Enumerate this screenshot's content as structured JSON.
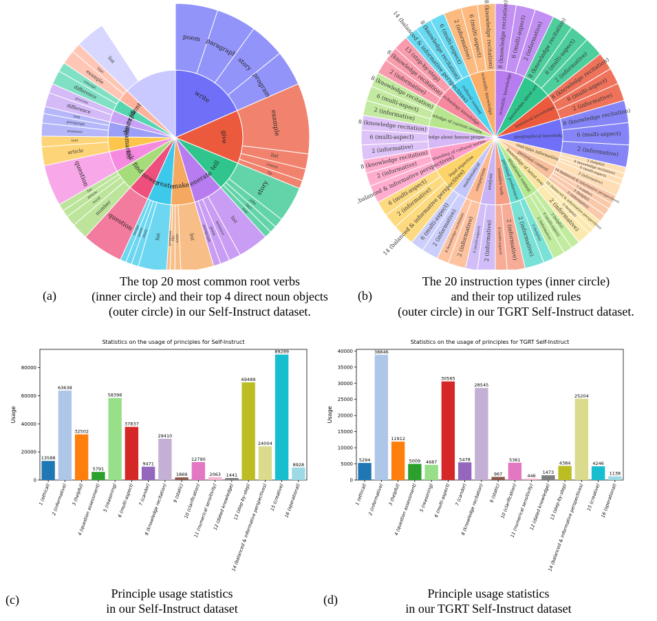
{
  "colors": {
    "write": "#6f70f7",
    "give": "#ec5a3e",
    "tell": "#2fc58c",
    "generate": "#b77cf0",
    "make": "#f5a85f",
    "create": "#3cc9ec",
    "answer": "#ef4f7c",
    "find": "#a6dc7a",
    "ask": "#f68ae0",
    "summarize": "#fdc54b",
    "edit": "#9c9ff8",
    "explain": "#56d6b0",
    "describe": "#c7a3f6",
    "identify": "#ffb39d",
    "other": "#c9c9ff"
  },
  "panel_a": {
    "tag": "(a)",
    "caption_lines": [
      "The top 20 most common root verbs",
      "(inner circle) and their top 4 direct noun objects",
      "(outer circle) in our Self-Instruct dataset."
    ],
    "inner": [
      {
        "label": "write",
        "value": 13,
        "color_key": "write"
      },
      {
        "label": "give",
        "value": 9,
        "color_key": "give"
      },
      {
        "label": "tell",
        "value": 5,
        "color_key": "tell"
      },
      {
        "label": "generate",
        "value": 5,
        "color_key": "generate"
      },
      {
        "label": "make",
        "value": 4,
        "color_key": "make"
      },
      {
        "label": "create",
        "value": 4,
        "color_key": "create"
      },
      {
        "label": "answer",
        "value": 3.5,
        "color_key": "answer"
      },
      {
        "label": "find",
        "value": 3.5,
        "color_key": "find"
      },
      {
        "label": "ask",
        "value": 3.5,
        "color_key": "ask"
      },
      {
        "label": "summarize",
        "value": 2.5,
        "color_key": "summarize"
      },
      {
        "label": "edit",
        "value": 2.5,
        "color_key": "edit"
      },
      {
        "label": "describe",
        "value": 2,
        "color_key": "describe"
      },
      {
        "label": "explain",
        "value": 2,
        "color_key": "explain"
      },
      {
        "label": "identify",
        "value": 2,
        "color_key": "identify"
      },
      {
        "label": "",
        "value": 9,
        "color_key": "other"
      }
    ],
    "outer": [
      {
        "label": "poem",
        "value": 3.6,
        "parent": 0
      },
      {
        "label": "paragraph",
        "value": 3.4,
        "parent": 0
      },
      {
        "label": "story",
        "value": 3,
        "parent": 0
      },
      {
        "label": "program",
        "value": 3,
        "parent": 0
      },
      {
        "label": "example",
        "value": 6,
        "parent": 1
      },
      {
        "label": "list",
        "value": 1.3,
        "parent": 1
      },
      {
        "label": "reason",
        "value": 1,
        "parent": 1
      },
      {
        "label": "tip",
        "value": 0.7,
        "parent": 1
      },
      {
        "label": "story",
        "value": 3,
        "parent": 2
      },
      {
        "label": "joke",
        "value": 0.8,
        "parent": 2
      },
      {
        "label": "fact",
        "value": 0.6,
        "parent": 2
      },
      {
        "label": "way",
        "value": 0.6,
        "parent": 2
      },
      {
        "label": "list",
        "value": 2.6,
        "parent": 3
      },
      {
        "label": "sentence",
        "value": 1,
        "parent": 3
      },
      {
        "label": "poem",
        "value": 0.8,
        "parent": 3
      },
      {
        "label": "paragraph",
        "value": 0.6,
        "parent": 3
      },
      {
        "label": "list",
        "value": 2.8,
        "parent": 4
      },
      {
        "label": "story",
        "value": 0.5,
        "parent": 4
      },
      {
        "label": "list",
        "value": 0.4,
        "parent": 4
      },
      {
        "label": "program",
        "value": 0.3,
        "parent": 4
      },
      {
        "label": "list",
        "value": 2.4,
        "parent": 5
      },
      {
        "label": "story",
        "value": 0.6,
        "parent": 5
      },
      {
        "label": "poem",
        "value": 0.5,
        "parent": 5
      },
      {
        "label": "recipe",
        "value": 0.5,
        "parent": 5
      },
      {
        "label": "question",
        "value": 3.5,
        "parent": 6
      },
      {
        "label": "number",
        "value": 1.4,
        "parent": 7
      },
      {
        "label": "word",
        "value": 0.9,
        "parent": 7
      },
      {
        "label": "article",
        "value": 0.6,
        "parent": 7
      },
      {
        "label": "list",
        "value": 0.6,
        "parent": 7
      },
      {
        "label": "question",
        "value": 3.5,
        "parent": 8
      },
      {
        "label": "article",
        "value": 1.6,
        "parent": 9
      },
      {
        "label": "text",
        "value": 0.9,
        "parent": 9
      },
      {
        "label": "sentence",
        "value": 1.1,
        "parent": 10
      },
      {
        "label": "paragraph",
        "value": 0.8,
        "parent": 10
      },
      {
        "label": "text",
        "value": 0.6,
        "parent": 10
      },
      {
        "label": "difference",
        "value": 1.2,
        "parent": 11
      },
      {
        "label": "process",
        "value": 0.8,
        "parent": 11
      },
      {
        "label": "difference",
        "value": 1.2,
        "parent": 12
      },
      {
        "label": "concept",
        "value": 0.8,
        "parent": 12
      },
      {
        "label": "example",
        "value": 1.2,
        "parent": 13
      },
      {
        "label": "type",
        "value": 0.8,
        "parent": 13
      },
      {
        "label": "list",
        "value": 2.5,
        "parent": 14
      },
      {
        "label": "",
        "value": 6.5,
        "parent": 14
      }
    ]
  },
  "panel_b": {
    "tag": "(b)",
    "caption_lines": [
      "The 20 instruction types (inner circle)",
      "and their top utilized rules",
      "(outer circle) in our TGRT Self-Instruct dataset."
    ],
    "inner": [
      {
        "label": "scientific knowledge",
        "value": 4,
        "color": "#b77cf0"
      },
      {
        "label": "knowledge about art",
        "value": 4,
        "color": "#2fc58c"
      },
      {
        "label": "historical knowledge",
        "value": 3.5,
        "color": "#ec5a3e"
      },
      {
        "label": "geographical knowledge",
        "value": 4.5,
        "color": "#6f70f7"
      },
      {
        "label": "real-time information",
        "value": 2,
        "color": "#fdd8a8"
      },
      {
        "label": "personal context",
        "value": 2,
        "color": "#f8c09a"
      },
      {
        "label": "knowledge of latest events",
        "value": 2,
        "color": "#fbe5a0"
      },
      {
        "label": "situational context",
        "value": 2,
        "color": "#b6e88e"
      },
      {
        "label": "personal preference",
        "value": 2,
        "color": "#62dcd0"
      },
      {
        "label": "creative task",
        "value": 2,
        "color": "#f59d85"
      },
      {
        "label": "analysis",
        "value": 2,
        "color": "#c9b3f7"
      },
      {
        "label": "comparison",
        "value": 2,
        "color": "#fdb88f"
      },
      {
        "label": "mathematical",
        "value": 2,
        "color": "#c3c6fa"
      },
      {
        "label": "legal expertise",
        "value": 3.5,
        "color": "#fdd469"
      },
      {
        "label": "understanding of cultural norms",
        "value": 3,
        "color": "#ff9ec7"
      },
      {
        "label": "knowledge about famous people",
        "value": 3,
        "color": "#d7b8f6"
      },
      {
        "label": "knowledge of current events",
        "value": 3,
        "color": "#b8e68f"
      },
      {
        "label": "technology knowledge",
        "value": 3,
        "color": "#f7899e"
      },
      {
        "label": "cultural context",
        "value": 3,
        "color": "#4fd4ef"
      },
      {
        "label": "scientific knowledge",
        "value": 3.5,
        "color": "#fbae6a"
      }
    ],
    "outer": [
      {
        "label": "8 (knowledge recitation)",
        "value": 1.4,
        "parent": 0
      },
      {
        "label": "6 (multi-aspect)",
        "value": 1.3,
        "parent": 0
      },
      {
        "label": "2 (informative)",
        "value": 1.3,
        "parent": 0
      },
      {
        "label": "8 (knowledge recitation)",
        "value": 1.4,
        "parent": 1
      },
      {
        "label": "6 (multi-aspect)",
        "value": 1.3,
        "parent": 1
      },
      {
        "label": "2 (informative)",
        "value": 1.3,
        "parent": 1
      },
      {
        "label": "8 (knowledge recitation)",
        "value": 1.2,
        "parent": 2
      },
      {
        "label": "6 (multi-aspect)",
        "value": 1.1,
        "parent": 2
      },
      {
        "label": "2 (informative)",
        "value": 1.2,
        "parent": 2
      },
      {
        "label": "8 (knowledge recitation)",
        "value": 1.5,
        "parent": 3
      },
      {
        "label": "6 (multi-aspect)",
        "value": 1.5,
        "parent": 3
      },
      {
        "label": "2 (informative)",
        "value": 1.5,
        "parent": 3
      },
      {
        "label": "3 (helpful)",
        "value": 0.4,
        "parent": 4
      },
      {
        "label": "8 (knowledge recitation)",
        "value": 0.4,
        "parent": 4
      },
      {
        "label": "6 (multi-aspect)",
        "value": 0.4,
        "parent": 4
      },
      {
        "label": "2 (informative)",
        "value": 0.8,
        "parent": 4
      },
      {
        "label": "14 (balanced & informative perspectives)",
        "value": 0.6,
        "parent": 5
      },
      {
        "label": "7 (candor)",
        "value": 0.4,
        "parent": 5
      },
      {
        "label": "3 (helpful)",
        "value": 0.5,
        "parent": 5
      },
      {
        "label": "2 (informative)",
        "value": 0.5,
        "parent": 5
      },
      {
        "label": "14 (balanced & informative perspectives)",
        "value": 0.7,
        "parent": 6
      },
      {
        "label": "3 (helpful)",
        "value": 0.4,
        "parent": 6
      },
      {
        "label": "2 (informative)",
        "value": 0.9,
        "parent": 6
      },
      {
        "label": "3 (helpful)",
        "value": 0.6,
        "parent": 7
      },
      {
        "label": "6 (multi-aspect)",
        "value": 0.6,
        "parent": 7
      },
      {
        "label": "2 (informative)",
        "value": 0.8,
        "parent": 7
      },
      {
        "label": "3 (helpful)",
        "value": 0.7,
        "parent": 8
      },
      {
        "label": "2 (informative)",
        "value": 1.3,
        "parent": 8
      },
      {
        "label": "2 (informative)",
        "value": 1.2,
        "parent": 9
      },
      {
        "label": "6 (multi-aspect)",
        "value": 0.8,
        "parent": 9
      },
      {
        "label": "2 (informative)",
        "value": 1.2,
        "parent": 10
      },
      {
        "label": "6 (multi-aspect)",
        "value": 0.8,
        "parent": 10
      },
      {
        "label": "2 (informative)",
        "value": 1.2,
        "parent": 11
      },
      {
        "label": "8 (knowledge recitation)",
        "value": 0.8,
        "parent": 11
      },
      {
        "label": "2 (informative)",
        "value": 1.1,
        "parent": 12
      },
      {
        "label": "6 (multi-aspect)",
        "value": 0.9,
        "parent": 12
      },
      {
        "label": "14 (balanced & informative perspectives)",
        "value": 1.5,
        "parent": 13
      },
      {
        "label": "2 (informative)",
        "value": 1,
        "parent": 13
      },
      {
        "label": "6 (multi-aspect)",
        "value": 1,
        "parent": 13
      },
      {
        "label": "14 (balanced & informative perspectives)",
        "value": 1.2,
        "parent": 14
      },
      {
        "label": "2 (informative)",
        "value": 0.9,
        "parent": 14
      },
      {
        "label": "8 (knowledge recitation)",
        "value": 0.9,
        "parent": 14
      },
      {
        "label": "2 (informative)",
        "value": 1,
        "parent": 15
      },
      {
        "label": "6 (multi-aspect)",
        "value": 1,
        "parent": 15
      },
      {
        "label": "8 (knowledge recitation)",
        "value": 1,
        "parent": 15
      },
      {
        "label": "2 (informative)",
        "value": 1,
        "parent": 16
      },
      {
        "label": "6 (multi-aspect)",
        "value": 1,
        "parent": 16
      },
      {
        "label": "8 (knowledge recitation)",
        "value": 1,
        "parent": 16
      },
      {
        "label": "2 (informative)",
        "value": 1,
        "parent": 17
      },
      {
        "label": "8 (knowledge recitation)",
        "value": 1,
        "parent": 17
      },
      {
        "label": "13 (step-by-step)",
        "value": 1,
        "parent": 17
      },
      {
        "label": "14 (balanced & informative perspectives)",
        "value": 0.9,
        "parent": 18
      },
      {
        "label": "8 (knowledge recitation)",
        "value": 1.1,
        "parent": 18
      },
      {
        "label": "6 (multi-aspect)",
        "value": 1,
        "parent": 18
      },
      {
        "label": "2 (informative)",
        "value": 1.2,
        "parent": 19
      },
      {
        "label": "6 (multi-aspect)",
        "value": 1.1,
        "parent": 19
      },
      {
        "label": "8 (knowledge recitation)",
        "value": 1.2,
        "parent": 19
      }
    ]
  },
  "panel_c": {
    "tag": "(c)",
    "caption_lines": [
      "Principle usage statistics",
      "in our Self-Instruct dataset"
    ]
  },
  "panel_d": {
    "tag": "(d)",
    "caption_lines": [
      "Principle usage statistics",
      "in our TGRT Self-Instruct dataset"
    ]
  },
  "chart_data": [
    {
      "type": "bar",
      "title": "Statistics on the usage of principles for Self-Instruct",
      "xlabel": "",
      "ylabel": "Usage",
      "ylim": [
        0,
        93000
      ],
      "yticks": [
        0,
        20000,
        40000,
        60000,
        80000
      ],
      "categories": [
        "1 (ethical)",
        "2 (informative)",
        "3 (helpful)",
        "4 (question assessment)",
        "5 (reasoning)",
        "6 (multi-aspect)",
        "7 (candor)",
        "8 (knowledge recitation)",
        "9 (static)",
        "10 (clarification)",
        "11 (numerical sensitivity)",
        "12 (dated knowledge)",
        "13 (step-by-step)",
        "14 (balanced & informative perspectives)",
        "15 (creative)",
        "16 (operational)"
      ],
      "values": [
        13588,
        63638,
        32502,
        5791,
        58396,
        37837,
        9471,
        29410,
        1869,
        12790,
        2063,
        1441,
        69489,
        24004,
        89289,
        8928
      ],
      "colors": [
        "#1f77b4",
        "#aec7e8",
        "#ff7f0e",
        "#2ca02c",
        "#98df8a",
        "#d62728",
        "#9467bd",
        "#c5b0d5",
        "#8c564b",
        "#e377c2",
        "#f7b6d2",
        "#7f7f7f",
        "#bcbd22",
        "#dbdb8d",
        "#17becf",
        "#9edae5"
      ]
    },
    {
      "type": "bar",
      "title": "Statistics on the usage of principles for TGRT Self-Instruct",
      "xlabel": "",
      "ylabel": "Usage",
      "ylim": [
        0,
        40500
      ],
      "yticks": [
        0,
        5000,
        10000,
        15000,
        20000,
        25000,
        30000,
        35000,
        40000
      ],
      "categories": [
        "1 (ethical)",
        "2 (informative)",
        "3 (helpful)",
        "4 (question assessment)",
        "5 (reasoning)",
        "6 (multi-aspect)",
        "7 (candor)",
        "8 (knowledge recitation)",
        "9 (static)",
        "10 (clarification)",
        "11 (numerical sensitivity)",
        "12 (dated knowledge)",
        "13 (step-by-step)",
        "14 (balanced & informative perspectives)",
        "15 (creative)",
        "16 (operational)"
      ],
      "values": [
        5294,
        38846,
        11912,
        5009,
        4687,
        30565,
        5478,
        28545,
        967,
        5361,
        446,
        1473,
        4384,
        25204,
        4246,
        1138
      ],
      "colors": [
        "#1f77b4",
        "#aec7e8",
        "#ff7f0e",
        "#2ca02c",
        "#98df8a",
        "#d62728",
        "#9467bd",
        "#c5b0d5",
        "#8c564b",
        "#e377c2",
        "#f7b6d2",
        "#7f7f7f",
        "#bcbd22",
        "#dbdb8d",
        "#17becf",
        "#9edae5"
      ]
    }
  ]
}
